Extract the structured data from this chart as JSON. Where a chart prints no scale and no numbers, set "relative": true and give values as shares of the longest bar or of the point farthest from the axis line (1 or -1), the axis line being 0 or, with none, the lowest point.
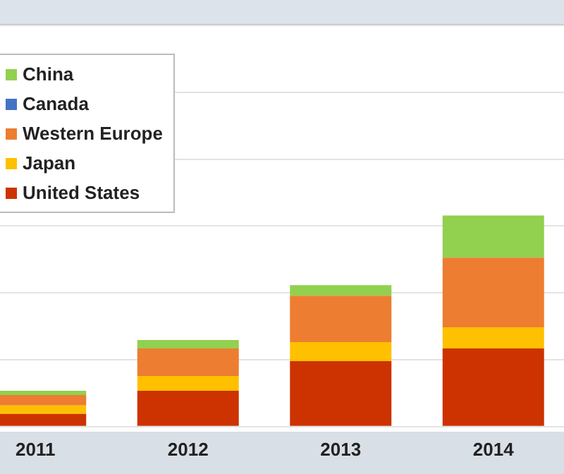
{
  "chart_data": {
    "type": "bar",
    "relative": true,
    "stacked": true,
    "grid": "y",
    "legend": "top left",
    "categories": [
      "2011",
      "2012",
      "2013",
      "2014"
    ],
    "series": [
      {
        "name": "United States",
        "color": "#cc3300",
        "values": [
          0.06,
          0.17,
          0.31,
          0.37
        ]
      },
      {
        "name": "Japan",
        "color": "#ffc000",
        "values": [
          0.04,
          0.07,
          0.09,
          0.1
        ]
      },
      {
        "name": "Western Europe",
        "color": "#ed7d31",
        "values": [
          0.05,
          0.13,
          0.22,
          0.33
        ]
      },
      {
        "name": "Canada",
        "color": "#4472c4",
        "values": [
          0,
          0,
          0,
          0
        ]
      },
      {
        "name": "China",
        "color": "#92d050",
        "values": [
          0.02,
          0.04,
          0.05,
          0.2
        ]
      }
    ]
  }
}
